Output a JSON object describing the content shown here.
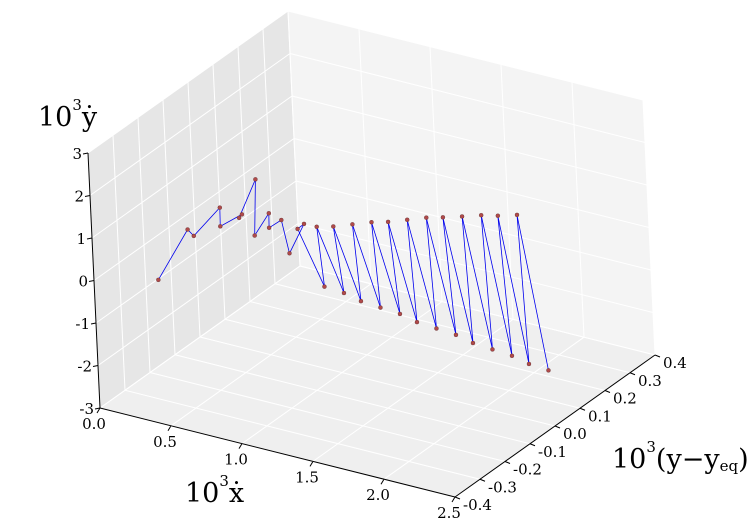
{
  "chart_data": {
    "type": "line3d",
    "xlabel": {
      "base": "10",
      "sup": "3",
      "rest": "ẋ"
    },
    "ylabel": {
      "base": "10",
      "sup": "3",
      "rest": "(y−y",
      "sub": "eq",
      "tail": ")"
    },
    "zlabel": {
      "base": "10",
      "sup": "3",
      "rest": "ẏ"
    },
    "xlim": [
      0,
      2.5
    ],
    "ylim": [
      -0.4,
      0.4
    ],
    "zlim": [
      -3,
      3
    ],
    "xticks": [
      {
        "value": 0,
        "label": "0.0"
      },
      0.5,
      {
        "value": 1,
        "label": "1.0"
      },
      1.5,
      {
        "value": 2,
        "label": "2.0"
      },
      2.5
    ],
    "yticks": [
      -0.4,
      -0.3,
      -0.2,
      -0.1,
      {
        "value": 0,
        "label": "0.0"
      },
      0.1,
      0.2,
      0.3,
      0.4
    ],
    "zticks": [
      -3,
      -2,
      -1,
      0,
      1,
      2,
      3
    ],
    "grid": true,
    "line_color": "#0000ee",
    "marker_color": "#b04a4a",
    "x": [
      0.33,
      0.5,
      0.45,
      0.7,
      0.55,
      0.8,
      0.65,
      1.0,
      0.7,
      0.9,
      0.75,
      0.95,
      0.85,
      1.0,
      1.1,
      1.18,
      1.2,
      1.28,
      1.3,
      1.38,
      1.4,
      1.48,
      1.5,
      1.58,
      1.6,
      1.68,
      1.7,
      1.78,
      1.8,
      1.88,
      1.9,
      1.98,
      2.0,
      2.08,
      2.1,
      2.18,
      2.2,
      2.28,
      2.3,
      2.38
    ],
    "y": [
      -0.33,
      -0.3,
      -0.25,
      -0.28,
      -0.2,
      -0.25,
      -0.18,
      -0.3,
      -0.15,
      -0.2,
      -0.12,
      -0.18,
      -0.1,
      -0.12,
      -0.2,
      -0.15,
      -0.18,
      -0.13,
      -0.17,
      -0.12,
      -0.15,
      -0.1,
      -0.13,
      -0.08,
      -0.12,
      -0.07,
      -0.1,
      -0.05,
      -0.08,
      -0.03,
      -0.07,
      -0.02,
      -0.05,
      0.0,
      -0.03,
      0.02,
      -0.02,
      0.03,
      0.0,
      0.05
    ],
    "z": [
      0,
      1.2,
      0.8,
      1.8,
      0.9,
      1.6,
      1.1,
      2.8,
      0.6,
      1.5,
      0.7,
      1.3,
      0.1,
      1.0,
      1.3,
      -0.2,
      1.35,
      -0.35,
      1.4,
      -0.5,
      1.45,
      -0.65,
      1.5,
      -0.8,
      1.55,
      -0.95,
      1.6,
      -1.1,
      1.65,
      -1.25,
      1.7,
      -1.4,
      1.72,
      -1.55,
      1.75,
      -1.7,
      1.78,
      -1.85,
      1.8,
      -2.0
    ]
  }
}
